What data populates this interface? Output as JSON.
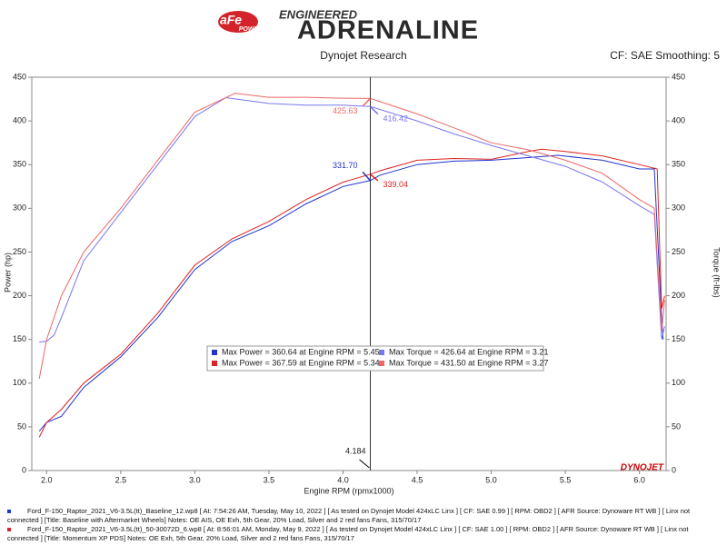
{
  "header": {
    "logo": "aFe",
    "logo_sub": "POWER",
    "tagline": "ENGINEERED",
    "brand": "ADRENALINE",
    "left_title": "Dynojet Research",
    "right_title": "CF: SAE Smoothing: 5"
  },
  "chart_data": {
    "type": "line",
    "ylabel": "Power (hp)",
    "y2label": "Torque (ft-lbs)",
    "xlabel": "Engine RPM (rpmx1000)",
    "watermark": "DYNOJET",
    "xlim": [
      1.9,
      6.18
    ],
    "ylim": [
      0,
      450
    ],
    "y2lim": [
      0,
      450
    ],
    "xticks": [
      {
        "value": 2,
        "label": "2.0"
      },
      2.5,
      {
        "value": 3,
        "label": "3.0"
      },
      3.5,
      {
        "value": 4,
        "label": "4.0"
      },
      4.5,
      {
        "value": 5,
        "label": "5.0"
      },
      5.5,
      {
        "value": 6,
        "label": "6.0"
      }
    ],
    "yticks": [
      0,
      50,
      100,
      150,
      200,
      250,
      300,
      350,
      400,
      450
    ],
    "y2ticks": [
      0,
      50,
      100,
      150,
      200,
      250,
      300,
      350,
      400,
      450
    ],
    "grid": false,
    "series": [
      {
        "name": "Max Power = 360.64 at Engine RPM = 5.45",
        "color": "#2233cc",
        "x": [
          1.95,
          2.0,
          2.1,
          2.25,
          2.5,
          2.75,
          3.0,
          3.25,
          3.5,
          3.75,
          4.0,
          4.184,
          4.25,
          4.5,
          4.75,
          5.0,
          5.25,
          5.45,
          5.75,
          6.0,
          6.1,
          6.15,
          6.16
        ],
        "values": [
          45,
          55,
          62,
          95,
          130,
          175,
          230,
          262,
          280,
          305,
          325,
          331.7,
          338,
          350,
          354,
          355,
          358,
          360.64,
          355,
          345,
          345,
          175,
          150
        ]
      },
      {
        "name": "Max Power = 367.59 at Engine RPM = 5.34",
        "color": "#dd2222",
        "x": [
          1.95,
          2.0,
          2.1,
          2.25,
          2.5,
          2.75,
          3.0,
          3.25,
          3.5,
          3.75,
          4.0,
          4.184,
          4.25,
          4.5,
          4.75,
          5.0,
          5.25,
          5.34,
          5.5,
          5.75,
          6.0,
          6.12,
          6.15,
          6.17
        ],
        "values": [
          38,
          55,
          70,
          100,
          133,
          180,
          235,
          265,
          285,
          310,
          330,
          339.04,
          343,
          355,
          357,
          356,
          365,
          367.59,
          365,
          360,
          350,
          345,
          185,
          200
        ]
      },
      {
        "name": "Max Torque = 426.64 at Engine RPM = 3.21",
        "color": "#7777ee",
        "axis": "y2",
        "x": [
          1.95,
          2.0,
          2.05,
          2.1,
          2.25,
          2.5,
          2.75,
          3.0,
          3.21,
          3.5,
          3.75,
          4.0,
          4.184,
          4.5,
          4.75,
          5.0,
          5.25,
          5.5,
          5.75,
          6.0,
          6.1,
          6.15,
          6.17
        ],
        "values": [
          147,
          148,
          155,
          175,
          240,
          295,
          350,
          405,
          426.64,
          420,
          418,
          418,
          416.42,
          400,
          385,
          372,
          360,
          348,
          330,
          303,
          293,
          150,
          165
        ]
      },
      {
        "name": "Max Torque = 431.50 at Engine RPM = 3.27",
        "color": "#ee6666",
        "axis": "y2",
        "x": [
          1.95,
          2.0,
          2.1,
          2.25,
          2.5,
          2.75,
          3.0,
          3.27,
          3.5,
          3.75,
          4.0,
          4.184,
          4.5,
          4.75,
          5.0,
          5.25,
          5.5,
          5.75,
          6.0,
          6.1,
          6.15,
          6.17
        ],
        "values": [
          105,
          150,
          200,
          250,
          300,
          355,
          410,
          431.5,
          427,
          427,
          426,
          425.63,
          408,
          392,
          375,
          367,
          355,
          340,
          310,
          300,
          160,
          195
        ]
      }
    ],
    "cursor": 4.184,
    "annotations": [
      {
        "series": 0,
        "value": 331.7,
        "label": "331.70"
      },
      {
        "series": 1,
        "value": 339.04,
        "label": "339.04"
      },
      {
        "series": 3,
        "value": 425.63,
        "label": "425.63"
      },
      {
        "series": 2,
        "value": 416.42,
        "label": "416.42"
      }
    ]
  },
  "footer": [
    "Ford_F-150_Raptor_2021_V6-3.5L(tt)_Baseline_12.wp8 [ At: 7:54:26 AM, Tuesday, May 10, 2022 ] [ As tested on Dynojet Model 424xLC Linx ] [ CF: SAE 0.99 ] [ RPM: OBD2 ] [ AFR Source: Dynoware RT WB ] [ Linx not connected ] [Title: Baseline with Aftermarket Wheels]  Notes: OE AIS, OE Exh, 5th Gear, 20% Load, Silver and 2 red fans Fans, 315/70/17",
    "Ford_F-150_Raptor_2021_V6-3.5L(tt)_50-30072D_6.wp8 [ At: 8:56:01 AM, Monday, May 9, 2022 ] [ As tested on Dynojet Model 424xLC Linx ] [ CF: SAE 1.00 ] [ RPM: OBD2 ] [ AFR Source: Dynoware RT WB ] [ Linx not connected ] [Title: Momentum XP PDS]  Notes: OE Exh, 5th Gear, 20% Load, Silver and 2 red fans Fans, 315/70/17"
  ]
}
